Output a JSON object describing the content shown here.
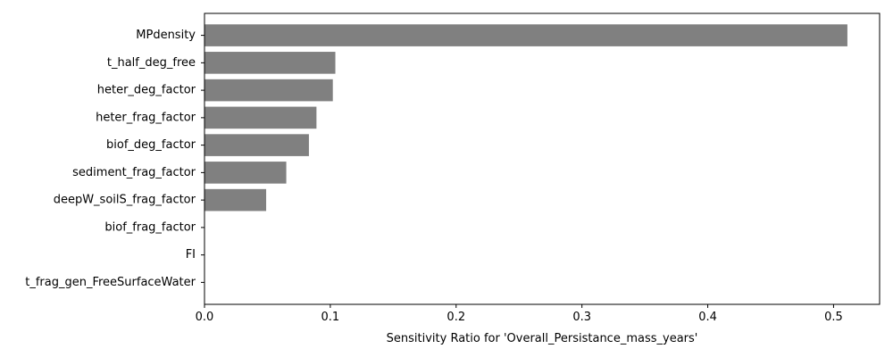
{
  "chart_data": {
    "type": "bar",
    "orientation": "horizontal",
    "categories": [
      "MPdensity",
      "t_half_deg_free",
      "heter_deg_factor",
      "heter_frag_factor",
      "biof_deg_factor",
      "sediment_frag_factor",
      "deepW_soilS_frag_factor",
      "biof_frag_factor",
      "FI",
      "t_frag_gen_FreeSurfaceWater"
    ],
    "values": [
      0.511,
      0.104,
      0.102,
      0.089,
      0.083,
      0.065,
      0.049,
      0.0,
      0.0,
      0.0
    ],
    "xlabel": "Sensitivity Ratio for 'Overall_Persistance_mass_years'",
    "ylabel": "",
    "title": "",
    "xlim": [
      0,
      0.5366
    ],
    "xticks": [
      0.0,
      0.1,
      0.2,
      0.3,
      0.4,
      0.5
    ],
    "xtick_labels": [
      "0.0",
      "0.1",
      "0.2",
      "0.3",
      "0.4",
      "0.5"
    ],
    "bar_color": "#808080",
    "grid": false,
    "legend": "none"
  }
}
